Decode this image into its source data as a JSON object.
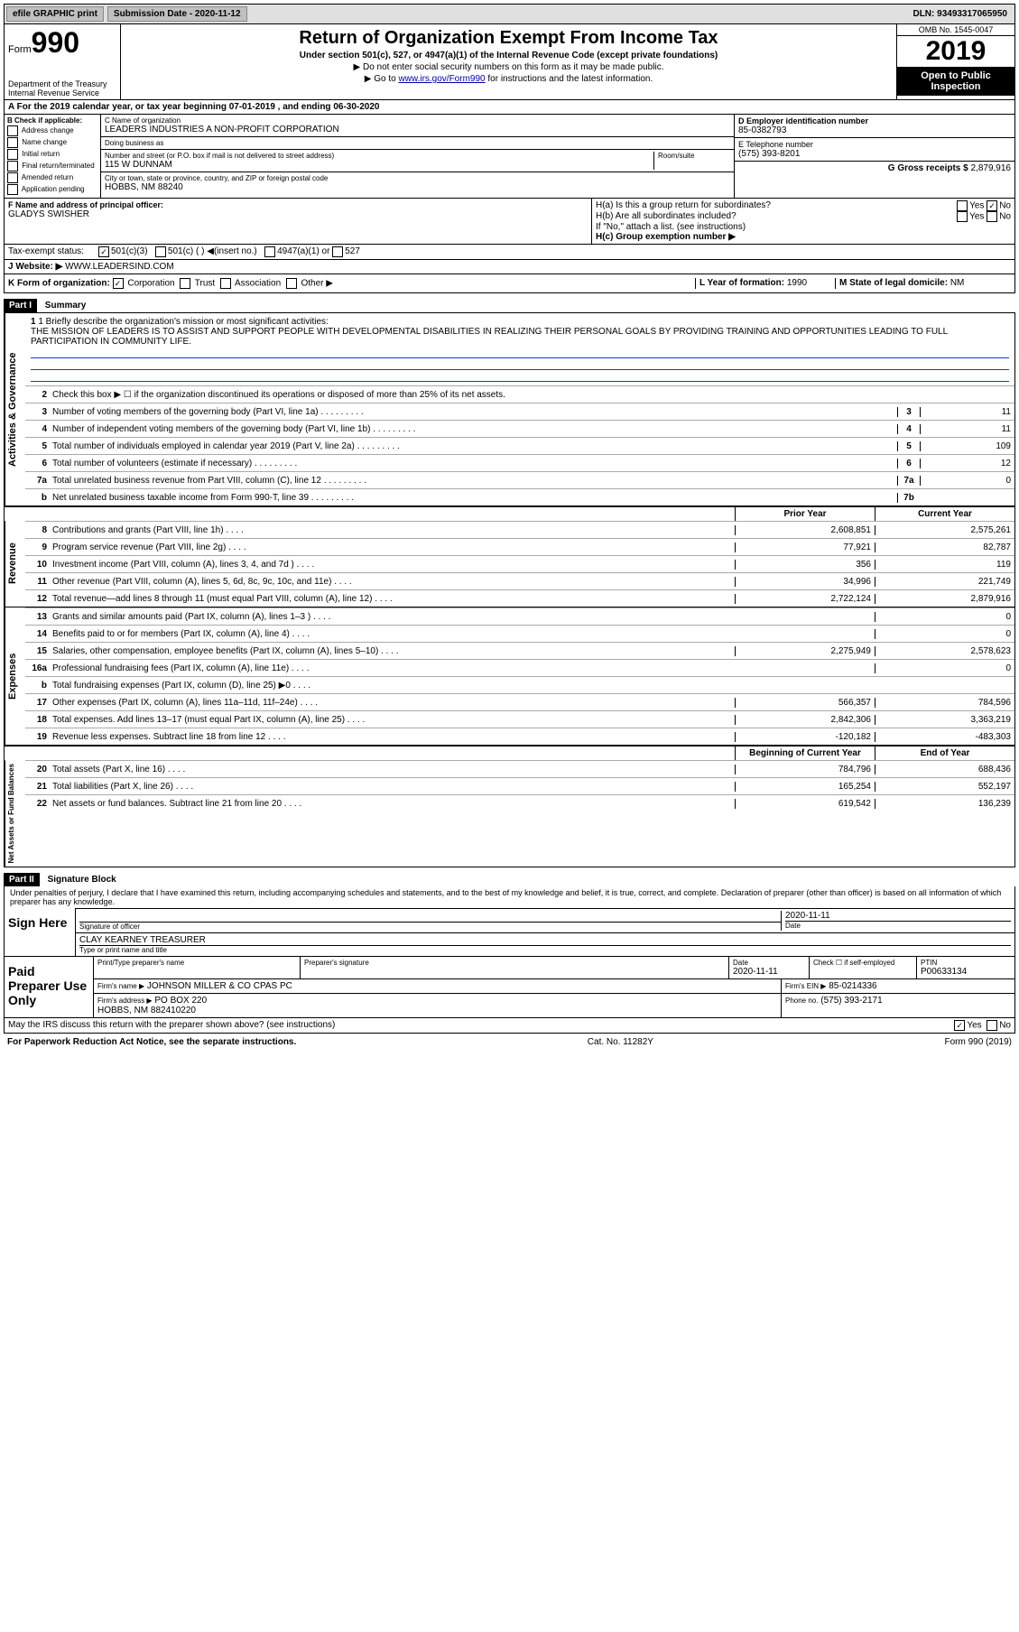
{
  "top_bar": {
    "efile_label": "efile GRAPHIC print",
    "submission_label": "Submission Date - 2020-11-12",
    "dln": "DLN: 93493317065950"
  },
  "header": {
    "form_word": "Form",
    "form_number": "990",
    "dept": "Department of the Treasury\nInternal Revenue Service",
    "title": "Return of Organization Exempt From Income Tax",
    "subtitle": "Under section 501(c), 527, or 4947(a)(1) of the Internal Revenue Code (except private foundations)",
    "note1": "▶ Do not enter social security numbers on this form as it may be made public.",
    "note2_pre": "▶ Go to ",
    "note2_link": "www.irs.gov/Form990",
    "note2_post": " for instructions and the latest information.",
    "omb": "OMB No. 1545-0047",
    "year": "2019",
    "open_public": "Open to Public Inspection"
  },
  "period_line": "A For the 2019 calendar year, or tax year beginning 07-01-2019   , and ending 06-30-2020",
  "section_b": {
    "check_label": "B Check if applicable:",
    "opts": [
      "Address change",
      "Name change",
      "Initial return",
      "Final return/terminated",
      "Amended return",
      "Application pending"
    ],
    "c_name_lbl": "C Name of organization",
    "c_name": "LEADERS INDUSTRIES A NON-PROFIT CORPORATION",
    "dba_lbl": "Doing business as",
    "addr_lbl": "Number and street (or P.O. box if mail is not delivered to street address)",
    "room_lbl": "Room/suite",
    "addr": "115 W DUNNAM",
    "city_lbl": "City or town, state or province, country, and ZIP or foreign postal code",
    "city": "HOBBS, NM  88240",
    "d_ein_lbl": "D Employer identification number",
    "d_ein": "85-0382793",
    "e_tel_lbl": "E Telephone number",
    "e_tel": "(575) 393-8201",
    "g_gross_lbl": "G Gross receipts $",
    "g_gross": "2,879,916"
  },
  "row_f": {
    "f_lbl": "F  Name and address of principal officer:",
    "f_name": "GLADYS SWISHER",
    "ha_lbl": "H(a)  Is this a group return for subordinates?",
    "ha_yes": "Yes",
    "ha_no": "No",
    "hb_lbl": "H(b)  Are all subordinates included?",
    "hb_note": "If \"No,\" attach a list. (see instructions)",
    "hc_lbl": "H(c)  Group exemption number ▶"
  },
  "tax_exempt": {
    "lbl": "Tax-exempt status:",
    "opt1": "501(c)(3)",
    "opt2": "501(c) (  ) ◀(insert no.)",
    "opt3": "4947(a)(1) or",
    "opt4": "527"
  },
  "website": {
    "lbl": "J  Website: ▶",
    "val": "WWW.LEADERSIND.COM"
  },
  "row_k": {
    "k_lbl": "K Form of organization:",
    "k_corp": "Corporation",
    "k_trust": "Trust",
    "k_assoc": "Association",
    "k_other": "Other ▶",
    "l_lbl": "L Year of formation:",
    "l_val": "1990",
    "m_lbl": "M State of legal domicile:",
    "m_val": "NM"
  },
  "part1": {
    "header": "Part I",
    "title": "Summary",
    "line1_lbl": "1  Briefly describe the organization's mission or most significant activities:",
    "mission": "THE MISSION OF LEADERS IS TO ASSIST AND SUPPORT PEOPLE WITH DEVELOPMENTAL DISABILITIES IN REALIZING THEIR PERSONAL GOALS BY PROVIDING TRAINING AND OPPORTUNITIES LEADING TO FULL PARTICIPATION IN COMMUNITY LIFE.",
    "line2": "Check this box ▶ ☐  if the organization discontinued its operations or disposed of more than 25% of its net assets.",
    "activities_label": "Activities & Governance",
    "lines_ag": [
      {
        "n": "3",
        "d": "Number of voting members of the governing body (Part VI, line 1a)",
        "bn": "3",
        "v": "11"
      },
      {
        "n": "4",
        "d": "Number of independent voting members of the governing body (Part VI, line 1b)",
        "bn": "4",
        "v": "11"
      },
      {
        "n": "5",
        "d": "Total number of individuals employed in calendar year 2019 (Part V, line 2a)",
        "bn": "5",
        "v": "109"
      },
      {
        "n": "6",
        "d": "Total number of volunteers (estimate if necessary)",
        "bn": "6",
        "v": "12"
      },
      {
        "n": "7a",
        "d": "Total unrelated business revenue from Part VIII, column (C), line 12",
        "bn": "7a",
        "v": "0"
      },
      {
        "n": "b",
        "d": "Net unrelated business taxable income from Form 990-T, line 39",
        "bn": "7b",
        "v": ""
      }
    ],
    "prior_year": "Prior Year",
    "current_year": "Current Year",
    "revenue_label": "Revenue",
    "lines_rev": [
      {
        "n": "8",
        "d": "Contributions and grants (Part VIII, line 1h)",
        "py": "2,608,851",
        "cy": "2,575,261"
      },
      {
        "n": "9",
        "d": "Program service revenue (Part VIII, line 2g)",
        "py": "77,921",
        "cy": "82,787"
      },
      {
        "n": "10",
        "d": "Investment income (Part VIII, column (A), lines 3, 4, and 7d )",
        "py": "356",
        "cy": "119"
      },
      {
        "n": "11",
        "d": "Other revenue (Part VIII, column (A), lines 5, 6d, 8c, 9c, 10c, and 11e)",
        "py": "34,996",
        "cy": "221,749"
      },
      {
        "n": "12",
        "d": "Total revenue—add lines 8 through 11 (must equal Part VIII, column (A), line 12)",
        "py": "2,722,124",
        "cy": "2,879,916"
      }
    ],
    "expenses_label": "Expenses",
    "lines_exp": [
      {
        "n": "13",
        "d": "Grants and similar amounts paid (Part IX, column (A), lines 1–3 )",
        "py": "",
        "cy": "0"
      },
      {
        "n": "14",
        "d": "Benefits paid to or for members (Part IX, column (A), line 4)",
        "py": "",
        "cy": "0"
      },
      {
        "n": "15",
        "d": "Salaries, other compensation, employee benefits (Part IX, column (A), lines 5–10)",
        "py": "2,275,949",
        "cy": "2,578,623"
      },
      {
        "n": "16a",
        "d": "Professional fundraising fees (Part IX, column (A), line 11e)",
        "py": "",
        "cy": "0"
      },
      {
        "n": "b",
        "d": "Total fundraising expenses (Part IX, column (D), line 25) ▶0",
        "py": "grey",
        "cy": "grey"
      },
      {
        "n": "17",
        "d": "Other expenses (Part IX, column (A), lines 11a–11d, 11f–24e)",
        "py": "566,357",
        "cy": "784,596"
      },
      {
        "n": "18",
        "d": "Total expenses. Add lines 13–17 (must equal Part IX, column (A), line 25)",
        "py": "2,842,306",
        "cy": "3,363,219"
      },
      {
        "n": "19",
        "d": "Revenue less expenses. Subtract line 18 from line 12",
        "py": "-120,182",
        "cy": "-483,303"
      }
    ],
    "net_label": "Net Assets or Fund Balances",
    "boy": "Beginning of Current Year",
    "eoy": "End of Year",
    "lines_net": [
      {
        "n": "20",
        "d": "Total assets (Part X, line 16)",
        "py": "784,796",
        "cy": "688,436"
      },
      {
        "n": "21",
        "d": "Total liabilities (Part X, line 26)",
        "py": "165,254",
        "cy": "552,197"
      },
      {
        "n": "22",
        "d": "Net assets or fund balances. Subtract line 21 from line 20",
        "py": "619,542",
        "cy": "136,239"
      }
    ]
  },
  "part2": {
    "header": "Part II",
    "title": "Signature Block",
    "declaration": "Under penalties of perjury, I declare that I have examined this return, including accompanying schedules and statements, and to the best of my knowledge and belief, it is true, correct, and complete. Declaration of preparer (other than officer) is based on all information of which preparer has any knowledge.",
    "sign_here": "Sign Here",
    "sig_officer_lbl": "Signature of officer",
    "date_lbl": "Date",
    "date_val": "2020-11-11",
    "printed_name": "CLAY KEARNEY  TREASURER",
    "printed_lbl": "Type or print name and title",
    "paid_prep": "Paid Preparer Use Only",
    "prep_name_lbl": "Print/Type preparer's name",
    "prep_sig_lbl": "Preparer's signature",
    "prep_date_lbl": "Date",
    "prep_date": "2020-11-11",
    "check_self": "Check ☐ if self-employed",
    "ptin_lbl": "PTIN",
    "ptin": "P00633134",
    "firm_name_lbl": "Firm's name    ▶",
    "firm_name": "JOHNSON MILLER & CO CPAS PC",
    "firm_ein_lbl": "Firm's EIN ▶",
    "firm_ein": "85-0214336",
    "firm_addr_lbl": "Firm's address ▶",
    "firm_addr": "PO BOX 220",
    "firm_city": "HOBBS, NM  882410220",
    "phone_lbl": "Phone no.",
    "phone": "(575) 393-2171",
    "discuss": "May the IRS discuss this return with the preparer shown above? (see instructions)",
    "yes": "Yes",
    "no": "No"
  },
  "footer": {
    "left": "For Paperwork Reduction Act Notice, see the separate instructions.",
    "mid": "Cat. No. 11282Y",
    "right": "Form 990 (2019)"
  }
}
